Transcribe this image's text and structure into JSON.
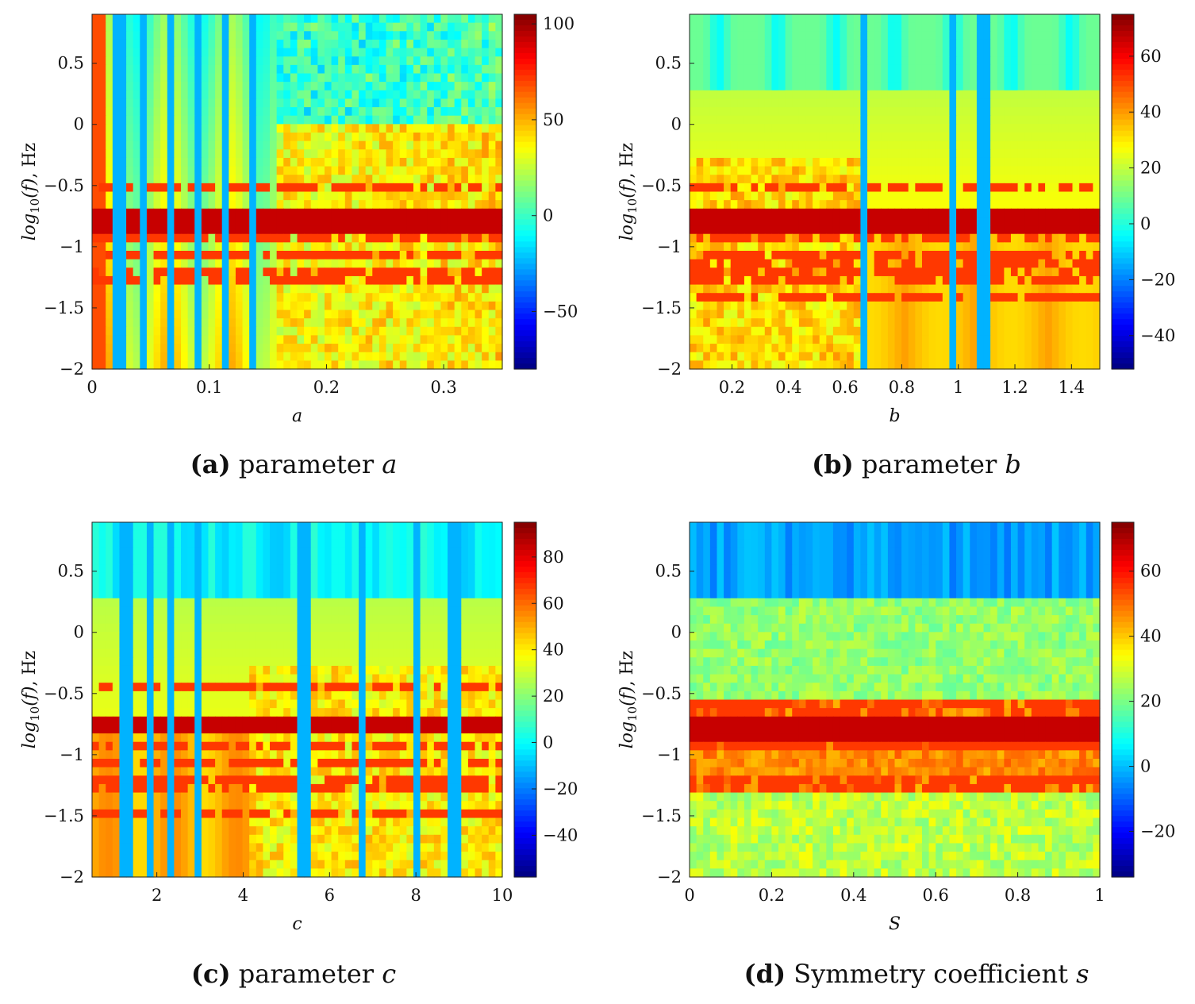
{
  "figure": {
    "panels": [
      {
        "id": "a",
        "caption": {
          "tag": "(a)",
          "text": "parameter",
          "var": "a"
        },
        "chart_data": {
          "type": "heatmap",
          "title": "",
          "xlabel": "a",
          "ylabel_prefix": "log",
          "ylabel_sub": "10",
          "ylabel_arg": "(f)",
          "ylabel_unit": ", Hz",
          "xlim": [
            0,
            0.35
          ],
          "ylim": [
            -2,
            0.9
          ],
          "xticks": [
            0,
            0.1,
            0.2,
            0.3
          ],
          "xtick_labels": [
            "0",
            "0.1",
            "0.2",
            "0.3"
          ],
          "yticks": [
            0.5,
            0,
            -0.5,
            -1,
            -1.5,
            -2
          ],
          "ytick_labels": [
            "0.5",
            "0",
            "−0.5",
            "−1",
            "−1.5",
            "−2"
          ],
          "colorbar": {
            "range": [
              -80,
              105
            ],
            "ticks": [
              100,
              50,
              0,
              -50
            ],
            "tick_labels": [
              "100",
              "50",
              "0",
              "−50"
            ]
          },
          "features": {
            "dominant_band_y": -0.8,
            "chaos_start_x": 0.16,
            "vertical_lines_x": [
              0.023,
              0.046,
              0.068,
              0.092,
              0.115,
              0.138
            ],
            "bands_y": [
              -0.5,
              -1.08,
              -1.25,
              -0.95,
              -0.75
            ]
          }
        }
      },
      {
        "id": "b",
        "caption": {
          "tag": "(b)",
          "text": "parameter",
          "var": "b"
        },
        "chart_data": {
          "type": "heatmap",
          "title": "",
          "xlabel": "b",
          "ylabel_prefix": "log",
          "ylabel_sub": "10",
          "ylabel_arg": "(f)",
          "ylabel_unit": ", Hz",
          "xlim": [
            0.05,
            1.5
          ],
          "ylim": [
            -2,
            0.9
          ],
          "xticks": [
            0.2,
            0.4,
            0.6,
            0.8,
            1,
            1.2,
            1.4
          ],
          "xtick_labels": [
            "0.2",
            "0.4",
            "0.6",
            "0.8",
            "1",
            "1.2",
            "1.4"
          ],
          "yticks": [
            0.5,
            0,
            -0.5,
            -1,
            -1.5,
            -2
          ],
          "ytick_labels": [
            "0.5",
            "0",
            "−0.5",
            "−1",
            "−1.5",
            "−2"
          ],
          "colorbar": {
            "range": [
              -52,
              75
            ],
            "ticks": [
              60,
              40,
              20,
              0,
              -20,
              -40
            ],
            "tick_labels": [
              "60",
              "40",
              "20",
              "0",
              "−20",
              "−40"
            ]
          },
          "features": {
            "dominant_band_y": -0.78,
            "chaos_end_x": 0.67,
            "vertical_lines_x": [
              0.67,
              0.98,
              1.09
            ],
            "bands_y": [
              -0.5,
              -1.1,
              -1.25,
              -0.93,
              -1.4
            ]
          }
        }
      },
      {
        "id": "c",
        "caption": {
          "tag": "(c)",
          "text": "parameter",
          "var": "c"
        },
        "chart_data": {
          "type": "heatmap",
          "title": "",
          "xlabel": "c",
          "ylabel_prefix": "log",
          "ylabel_sub": "10",
          "ylabel_arg": "(f)",
          "ylabel_unit": ", Hz",
          "xlim": [
            0.5,
            10
          ],
          "ylim": [
            -2,
            0.9
          ],
          "xticks": [
            2,
            4,
            6,
            8,
            10
          ],
          "xtick_labels": [
            "2",
            "4",
            "6",
            "8",
            "10"
          ],
          "yticks": [
            0.5,
            0,
            -0.5,
            -1,
            -1.5,
            -2
          ],
          "ytick_labels": [
            "0.5",
            "0",
            "−0.5",
            "−1",
            "−1.5",
            "−2"
          ],
          "colorbar": {
            "range": [
              -58,
              95
            ],
            "ticks": [
              80,
              60,
              40,
              20,
              0,
              -20,
              -40
            ],
            "tick_labels": [
              "80",
              "60",
              "40",
              "20",
              "0",
              "−20",
              "−40"
            ]
          },
          "features": {
            "dominant_band_y": -0.75,
            "chaos_start_x": 4.2,
            "vertical_lines_x": [
              1.3,
              1.8,
              2.3,
              2.9,
              5.4,
              6.8,
              8.0,
              8.9
            ],
            "bands_y": [
              -0.45,
              -1.08,
              -1.25,
              -0.95,
              -1.47
            ]
          }
        }
      },
      {
        "id": "d",
        "caption": {
          "tag": "(d)",
          "text": "Symmetry coefficient",
          "var": "s"
        },
        "chart_data": {
          "type": "heatmap",
          "title": "",
          "xlabel": "S",
          "ylabel_prefix": "log",
          "ylabel_sub": "10",
          "ylabel_arg": "(f)",
          "ylabel_unit": ", Hz",
          "xlim": [
            0,
            1
          ],
          "ylim": [
            -2,
            0.9
          ],
          "xticks": [
            0,
            0.2,
            0.4,
            0.6,
            0.8,
            1
          ],
          "xtick_labels": [
            "0",
            "0.2",
            "0.4",
            "0.6",
            "0.8",
            "1"
          ],
          "yticks": [
            0.5,
            0,
            -0.5,
            -1,
            -1.5,
            -2
          ],
          "ytick_labels": [
            "0.5",
            "0",
            "−0.5",
            "−1",
            "−1.5",
            "−2"
          ],
          "colorbar": {
            "range": [
              -34,
              75
            ],
            "ticks": [
              60,
              40,
              20,
              0,
              -20
            ],
            "tick_labels": [
              "60",
              "40",
              "20",
              "0",
              "−20"
            ]
          },
          "features": {
            "dominant_band_y": -0.78,
            "bands_y": [
              -0.58,
              -0.65,
              -0.9,
              -0.95,
              -1.25
            ]
          }
        }
      }
    ]
  }
}
